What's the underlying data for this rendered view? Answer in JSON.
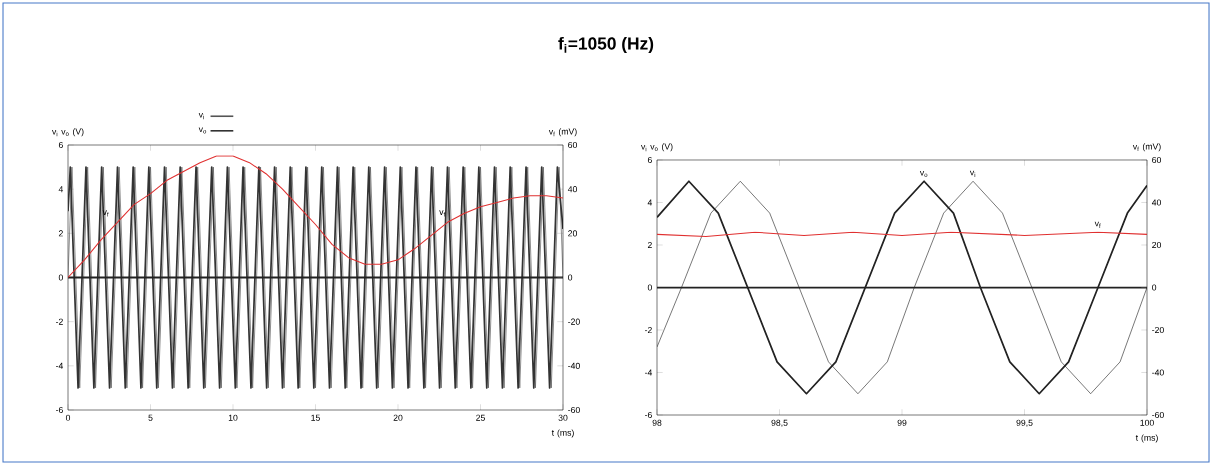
{
  "chart_data": [
    {
      "type": "line",
      "title": "**f$_{i}$=1050 (Hz)**",
      "xlabel": "t (ms)",
      "ylabel": "v$_{i}$ v$_{o}$ (V)",
      "y2label": "v$_{f}$ (mV)",
      "xlim": [
        0,
        30
      ],
      "xticks": [
        0,
        5,
        10,
        15,
        20,
        25,
        30
      ],
      "ylim": [
        -6,
        6
      ],
      "yticks": [
        -6,
        -4,
        -2,
        0,
        2,
        4,
        6
      ],
      "y2lim": [
        -60,
        60
      ],
      "y2ticks": [
        -60,
        -40,
        -20,
        0,
        20,
        40,
        60
      ],
      "grid": false,
      "legend": "top",
      "marker": "none",
      "line_style": "solid",
      "ref_lines": [
        {
          "axis": "y",
          "value": 0,
          "color": "#222222"
        }
      ],
      "annotations": [
        {
          "text": "v$_{f}$",
          "x": 2.3,
          "y": 2.9
        },
        {
          "text": "v$_{f}$",
          "x": 22.7,
          "y": 2.9
        }
      ],
      "series": [
        {
          "name": "v$_{i}$",
          "color": "#555555",
          "x": [
            0,
            0.24,
            0.71,
            1.19,
            1.67,
            2.14,
            2.62,
            3.1,
            3.57,
            4.05,
            4.52,
            5.0,
            5.48,
            5.95,
            6.43,
            6.9,
            7.38,
            7.86,
            8.33,
            8.81,
            9.29,
            9.76,
            10.24,
            10.71,
            11.19,
            11.67,
            12.14,
            12.62,
            13.1,
            13.57,
            14.05,
            14.52,
            15.0,
            15.48,
            15.95,
            16.43,
            16.9,
            17.38,
            17.86,
            18.33,
            18.81,
            19.29,
            19.76,
            20.24,
            20.71,
            21.19,
            21.67,
            22.14,
            22.62,
            23.1,
            23.57,
            24.05,
            24.52,
            25.0,
            25.48,
            25.95,
            26.43,
            26.9,
            27.38,
            27.86,
            28.33,
            28.81,
            29.29,
            29.76,
            30
          ],
          "values": [
            0,
            5,
            -5,
            5,
            -5,
            5,
            -5,
            5,
            -5,
            5,
            -5,
            5,
            -5,
            5,
            -5,
            5,
            -5,
            5,
            -5,
            5,
            -5,
            5,
            -5,
            5,
            -5,
            5,
            -5,
            5,
            -5,
            5,
            -5,
            5,
            -5,
            5,
            -5,
            5,
            -5,
            5,
            -5,
            5,
            -5,
            5,
            -5,
            5,
            -5,
            5,
            -5,
            5,
            -5,
            5,
            -5,
            5,
            -5,
            5,
            -5,
            5,
            -5,
            5,
            -5,
            5,
            -5,
            5,
            -5,
            5,
            0
          ]
        },
        {
          "name": "v$_{o}$",
          "color": "#333333",
          "x": [
            0,
            0.14,
            0.61,
            1.09,
            1.57,
            2.04,
            2.52,
            3.0,
            3.47,
            3.95,
            4.42,
            4.9,
            5.38,
            5.85,
            6.33,
            6.8,
            7.28,
            7.76,
            8.23,
            8.71,
            9.19,
            9.66,
            10.14,
            10.61,
            11.09,
            11.57,
            12.04,
            12.52,
            13.0,
            13.47,
            13.95,
            14.42,
            14.9,
            15.38,
            15.85,
            16.33,
            16.8,
            17.28,
            17.76,
            18.23,
            18.71,
            19.19,
            19.66,
            20.14,
            20.61,
            21.09,
            21.57,
            22.04,
            22.52,
            23.0,
            23.47,
            23.95,
            24.42,
            24.9,
            25.38,
            25.85,
            26.33,
            26.8,
            27.28,
            27.76,
            28.23,
            28.71,
            29.19,
            29.66,
            30
          ],
          "values": [
            3.0,
            5,
            -5,
            5,
            -5,
            5,
            -5,
            5,
            -5,
            5,
            -5,
            5,
            -5,
            5,
            -5,
            5,
            -5,
            5,
            -5,
            5,
            -5,
            5,
            -5,
            5,
            -5,
            5,
            -5,
            5,
            -5,
            5,
            -5,
            5,
            -5,
            5,
            -5,
            5,
            -5,
            5,
            -5,
            5,
            -5,
            5,
            -5,
            5,
            -5,
            5,
            -5,
            5,
            -5,
            5,
            -5,
            5,
            -5,
            5,
            -5,
            5,
            -5,
            5,
            -5,
            5,
            -5,
            5,
            -5,
            5,
            2.2
          ]
        },
        {
          "color": "#e03030",
          "axis": "y2",
          "x": [
            0,
            1,
            2,
            3,
            4,
            5,
            6,
            7,
            8,
            9,
            10,
            11,
            12,
            13,
            14,
            15,
            16,
            17,
            18,
            19,
            20,
            21,
            22,
            23,
            24,
            25,
            26,
            27,
            28,
            29,
            30
          ],
          "values": [
            0,
            8,
            17,
            25,
            33,
            38,
            44,
            48,
            52,
            55,
            55,
            52,
            47,
            40,
            32,
            24,
            15,
            9,
            6,
            6,
            8,
            13,
            19,
            25,
            29,
            32,
            34,
            36,
            37,
            37,
            36
          ]
        }
      ]
    },
    {
      "type": "line",
      "xlabel": "t (ms)",
      "ylabel": "v$_{i}$ v$_{o}$ (V)",
      "y2label": "v$_{f}$ (mV)",
      "xlim": [
        98,
        100
      ],
      "xticks": [
        98,
        {
          "value": 98.5,
          "label": "98,5"
        },
        99,
        {
          "value": 99.5,
          "label": "99,5"
        },
        100
      ],
      "ylim": [
        -6,
        6
      ],
      "yticks": [
        -6,
        -4,
        -2,
        0,
        2,
        4,
        6
      ],
      "y2lim": [
        -60,
        60
      ],
      "y2ticks": [
        -60,
        -40,
        -20,
        0,
        20,
        40,
        60
      ],
      "grid": false,
      "marker": "none",
      "line_style": "solid",
      "ref_lines": [
        {
          "axis": "y",
          "value": 0,
          "color": "#222222"
        }
      ],
      "series": [
        {
          "name": "v$_{i}$",
          "color": "#333333",
          "x": [
            98.0,
            98.1,
            98.22,
            98.34,
            98.46,
            98.58,
            98.7,
            98.82,
            98.94,
            99.05,
            99.17,
            99.29,
            99.41,
            99.53,
            99.65,
            99.77,
            99.89,
            100
          ],
          "values": [
            -2.8,
            0,
            3.5,
            5,
            3.5,
            0,
            -3.5,
            -5,
            -3.5,
            0,
            3.5,
            5,
            3.5,
            0,
            -3.5,
            -5,
            -3.5,
            0
          ]
        },
        {
          "name": "v$_{o}$",
          "color": "#222222",
          "x": [
            98.0,
            98.13,
            98.25,
            98.37,
            98.49,
            98.61,
            98.73,
            98.85,
            98.97,
            99.09,
            99.21,
            99.32,
            99.44,
            99.56,
            99.68,
            99.8,
            99.92,
            100
          ],
          "values": [
            3.3,
            5,
            3.5,
            0,
            -3.5,
            -5,
            -3.5,
            0,
            3.5,
            5,
            3.5,
            0,
            -3.5,
            -5,
            -3.5,
            0,
            3.5,
            4.8
          ]
        },
        {
          "name": "v$_{f}$",
          "color": "#e03030",
          "axis": "y2",
          "x": [
            98,
            98.2,
            98.4,
            98.6,
            98.8,
            99,
            99.2,
            99.5,
            99.8,
            100
          ],
          "values": [
            25,
            24,
            26,
            24.5,
            26,
            24.5,
            26,
            24.5,
            26,
            25
          ]
        }
      ]
    }
  ]
}
